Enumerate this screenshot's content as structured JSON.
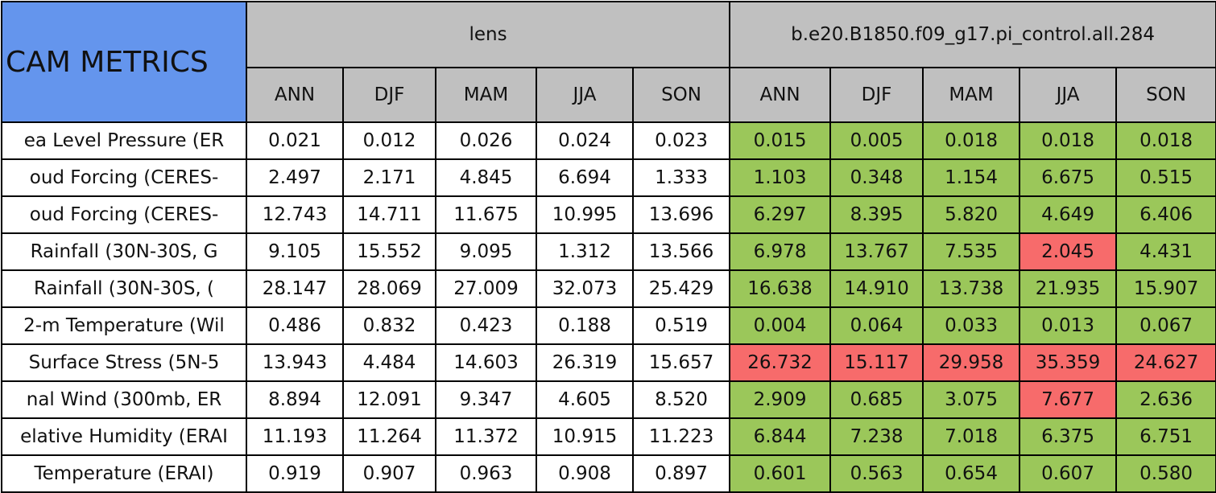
{
  "header": {
    "title": "CAM METRICS",
    "groups": [
      "lens",
      "b.e20.B1850.f09_g17.pi_control.all.284"
    ],
    "seasons": [
      [
        "ANN",
        "DJF",
        "MAM",
        "JJA",
        "SON"
      ],
      [
        "ANN",
        "DJF",
        "MAM",
        "JJA",
        "SON"
      ]
    ]
  },
  "table": {
    "rows": [
      {
        "label": "ea Level Pressure (ER",
        "cells": [
          "0.021",
          "0.012",
          "0.026",
          "0.024",
          "0.023",
          "0.015",
          "0.005",
          "0.018",
          "0.018",
          "0.018"
        ],
        "colors": [
          "#ffffff",
          "#ffffff",
          "#ffffff",
          "#ffffff",
          "#ffffff",
          "#9bc75a",
          "#9bc75a",
          "#9bc75a",
          "#9bc75a",
          "#9bc75a"
        ]
      },
      {
        "label": "oud Forcing (CERES-",
        "cells": [
          "2.497",
          "2.171",
          "4.845",
          "6.694",
          "1.333",
          "1.103",
          "0.348",
          "1.154",
          "6.675",
          "0.515"
        ],
        "colors": [
          "#ffffff",
          "#ffffff",
          "#ffffff",
          "#ffffff",
          "#ffffff",
          "#9bc75a",
          "#9bc75a",
          "#9bc75a",
          "#9bc75a",
          "#9bc75a"
        ]
      },
      {
        "label": "oud Forcing (CERES-",
        "cells": [
          "12.743",
          "14.711",
          "11.675",
          "10.995",
          "13.696",
          "6.297",
          "8.395",
          "5.820",
          "4.649",
          "6.406"
        ],
        "colors": [
          "#ffffff",
          "#ffffff",
          "#ffffff",
          "#ffffff",
          "#ffffff",
          "#9bc75a",
          "#9bc75a",
          "#9bc75a",
          "#9bc75a",
          "#9bc75a"
        ]
      },
      {
        "label": "Rainfall (30N-30S, G",
        "cells": [
          "9.105",
          "15.552",
          "9.095",
          "1.312",
          "13.566",
          "6.978",
          "13.767",
          "7.535",
          "2.045",
          "4.431"
        ],
        "colors": [
          "#ffffff",
          "#ffffff",
          "#ffffff",
          "#ffffff",
          "#ffffff",
          "#9bc75a",
          "#9bc75a",
          "#9bc75a",
          "#f76b6b",
          "#9bc75a"
        ]
      },
      {
        "label": "Rainfall (30N-30S, (",
        "cells": [
          "28.147",
          "28.069",
          "27.009",
          "32.073",
          "25.429",
          "16.638",
          "14.910",
          "13.738",
          "21.935",
          "15.907"
        ],
        "colors": [
          "#ffffff",
          "#ffffff",
          "#ffffff",
          "#ffffff",
          "#ffffff",
          "#9bc75a",
          "#9bc75a",
          "#9bc75a",
          "#9bc75a",
          "#9bc75a"
        ]
      },
      {
        "label": "2-m Temperature (Wil",
        "cells": [
          "0.486",
          "0.832",
          "0.423",
          "0.188",
          "0.519",
          "0.004",
          "0.064",
          "0.033",
          "0.013",
          "0.067"
        ],
        "colors": [
          "#ffffff",
          "#ffffff",
          "#ffffff",
          "#ffffff",
          "#ffffff",
          "#9bc75a",
          "#9bc75a",
          "#9bc75a",
          "#9bc75a",
          "#9bc75a"
        ]
      },
      {
        "label": "Surface Stress (5N-5",
        "cells": [
          "13.943",
          "4.484",
          "14.603",
          "26.319",
          "15.657",
          "26.732",
          "15.117",
          "29.958",
          "35.359",
          "24.627"
        ],
        "colors": [
          "#ffffff",
          "#ffffff",
          "#ffffff",
          "#ffffff",
          "#ffffff",
          "#f76b6b",
          "#f76b6b",
          "#f76b6b",
          "#f76b6b",
          "#f76b6b"
        ]
      },
      {
        "label": "nal Wind (300mb, ER",
        "cells": [
          "8.894",
          "12.091",
          "9.347",
          "4.605",
          "8.520",
          "2.909",
          "0.685",
          "3.075",
          "7.677",
          "2.636"
        ],
        "colors": [
          "#ffffff",
          "#ffffff",
          "#ffffff",
          "#ffffff",
          "#ffffff",
          "#9bc75a",
          "#9bc75a",
          "#9bc75a",
          "#f76b6b",
          "#9bc75a"
        ]
      },
      {
        "label": "elative Humidity (ERAI",
        "cells": [
          "11.193",
          "11.264",
          "11.372",
          "10.915",
          "11.223",
          "6.844",
          "7.238",
          "7.018",
          "6.375",
          "6.751"
        ],
        "colors": [
          "#ffffff",
          "#ffffff",
          "#ffffff",
          "#ffffff",
          "#ffffff",
          "#9bc75a",
          "#9bc75a",
          "#9bc75a",
          "#9bc75a",
          "#9bc75a"
        ]
      },
      {
        "label": "Temperature (ERAI)",
        "cells": [
          "0.919",
          "0.907",
          "0.963",
          "0.908",
          "0.897",
          "0.601",
          "0.563",
          "0.654",
          "0.607",
          "0.580"
        ],
        "colors": [
          "#ffffff",
          "#ffffff",
          "#ffffff",
          "#ffffff",
          "#ffffff",
          "#9bc75a",
          "#9bc75a",
          "#9bc75a",
          "#9bc75a",
          "#9bc75a"
        ]
      }
    ]
  }
}
